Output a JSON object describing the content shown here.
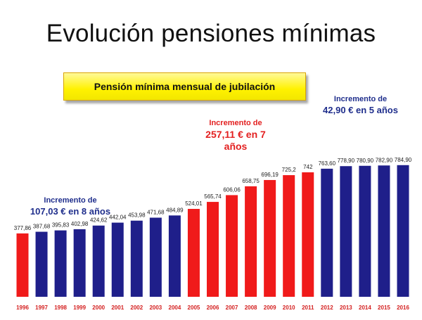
{
  "title": "Evolución pensiones mínimas",
  "subtitle": "Pensión mínima mensual de jubilación",
  "annotations": {
    "period1": {
      "line1": "Incremento de",
      "line2": "107,03 € en 8 años"
    },
    "period2": {
      "line1": "Incremento de",
      "line2": "257,11 € en 7",
      "line3": "años"
    },
    "period3": {
      "line1": "Incremento de",
      "line2": "42,90 € en 5 años"
    }
  },
  "colors": {
    "red": "#f01a1a",
    "blue": "#1f1f8a",
    "red_text": "#e32020",
    "blue_text": "#1f2e8c"
  },
  "chart_data": {
    "type": "bar",
    "title": "Pensión mínima mensual de jubilación",
    "xlabel": "",
    "ylabel": "",
    "ylim": [
      0,
      900
    ],
    "grid": false,
    "categories": [
      "1996",
      "1997",
      "1998",
      "1999",
      "2000",
      "2001",
      "2002",
      "2003",
      "2004",
      "2005",
      "2006",
      "2007",
      "2008",
      "2009",
      "2010",
      "2011",
      "2012",
      "2013",
      "2014",
      "2015",
      "2016"
    ],
    "values": [
      377.86,
      387.68,
      395.83,
      402.98,
      424.62,
      442.04,
      453.98,
      471.68,
      484.89,
      524.01,
      565.74,
      606.06,
      658.75,
      696.19,
      725.2,
      742,
      763.6,
      778.9,
      780.9,
      782.9,
      784.9
    ],
    "value_labels": [
      "377,86",
      "387,68",
      "395,83",
      "402,98",
      "424,62",
      "442,04",
      "453,98",
      "471,68",
      "484,89",
      "524,01",
      "565,74",
      "606,06",
      "658,75",
      "696,19",
      "725,2",
      "742",
      "763,60",
      "778,90",
      "780,90",
      "782,90",
      "784,90"
    ],
    "bar_colors": [
      "red",
      "blue",
      "blue",
      "blue",
      "blue",
      "blue",
      "blue",
      "blue",
      "blue",
      "red",
      "red",
      "red",
      "red",
      "red",
      "red",
      "red",
      "blue",
      "blue",
      "blue",
      "blue",
      "blue"
    ]
  }
}
